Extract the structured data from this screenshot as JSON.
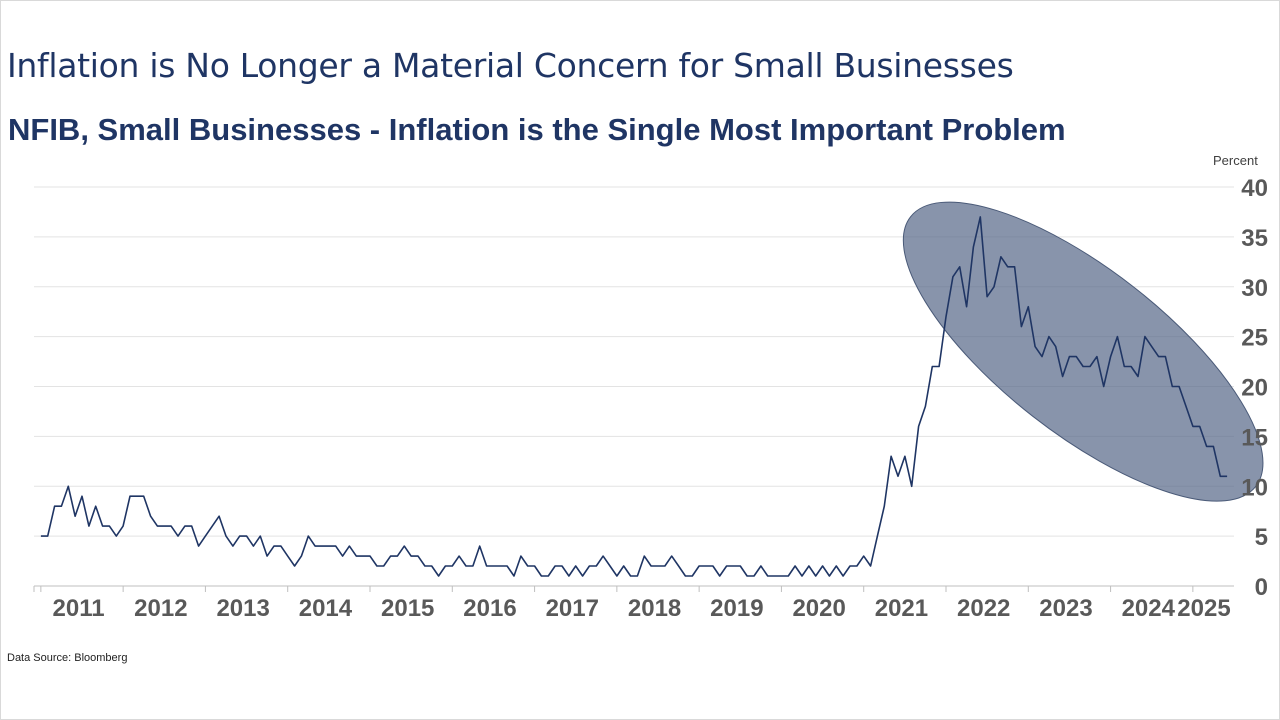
{
  "header": {
    "slide_title": "Inflation is No Longer a Material Concern for Small Businesses"
  },
  "footer": {
    "source": "Data Source: Bloomberg"
  },
  "colors": {
    "line": "#1f3564",
    "highlight_fill": "#5a6b8a",
    "grid": "#e3e3e3",
    "text": "#1f3564",
    "tick_text": "#595959"
  },
  "chart_data": {
    "type": "line",
    "title": "NFIB, Small Businesses - Inflation is the Single Most Important Problem",
    "unit_label": "Percent",
    "xlabel": "",
    "ylabel": "",
    "ylim": [
      0,
      40
    ],
    "yticks": [
      "0",
      "5",
      "10",
      "15",
      "20",
      "25",
      "30",
      "35",
      "40"
    ],
    "xlim": [
      "2010-12",
      "2025-07"
    ],
    "xticks": [
      "2011",
      "2012",
      "2013",
      "2014",
      "2015",
      "2016",
      "2017",
      "2018",
      "2019",
      "2020",
      "2021",
      "2022",
      "2023",
      "2024",
      "2025"
    ],
    "y_axis_position": "right",
    "grid": true,
    "annotation": {
      "shape": "ellipse",
      "highlights": "2022 peak through 2025 decline"
    },
    "series": [
      {
        "x": [
          "2011-01",
          "2011-02",
          "2011-03",
          "2011-04",
          "2011-05",
          "2011-06",
          "2011-07",
          "2011-08",
          "2011-09",
          "2011-10",
          "2011-11",
          "2011-12",
          "2012-01",
          "2012-02",
          "2012-03",
          "2012-04",
          "2012-05",
          "2012-06",
          "2012-07",
          "2012-08",
          "2012-09",
          "2012-10",
          "2012-11",
          "2012-12",
          "2013-01",
          "2013-02",
          "2013-03",
          "2013-04",
          "2013-05",
          "2013-06",
          "2013-07",
          "2013-08",
          "2013-09",
          "2013-10",
          "2013-11",
          "2013-12",
          "2014-01",
          "2014-02",
          "2014-03",
          "2014-04",
          "2014-05",
          "2014-06",
          "2014-07",
          "2014-08",
          "2014-09",
          "2014-10",
          "2014-11",
          "2014-12",
          "2015-01",
          "2015-02",
          "2015-03",
          "2015-04",
          "2015-05",
          "2015-06",
          "2015-07",
          "2015-08",
          "2015-09",
          "2015-10",
          "2015-11",
          "2015-12",
          "2016-01",
          "2016-02",
          "2016-03",
          "2016-04",
          "2016-05",
          "2016-06",
          "2016-07",
          "2016-08",
          "2016-09",
          "2016-10",
          "2016-11",
          "2016-12",
          "2017-01",
          "2017-02",
          "2017-03",
          "2017-04",
          "2017-05",
          "2017-06",
          "2017-07",
          "2017-08",
          "2017-09",
          "2017-10",
          "2017-11",
          "2017-12",
          "2018-01",
          "2018-02",
          "2018-03",
          "2018-04",
          "2018-05",
          "2018-06",
          "2018-07",
          "2018-08",
          "2018-09",
          "2018-10",
          "2018-11",
          "2018-12",
          "2019-01",
          "2019-02",
          "2019-03",
          "2019-04",
          "2019-05",
          "2019-06",
          "2019-07",
          "2019-08",
          "2019-09",
          "2019-10",
          "2019-11",
          "2019-12",
          "2020-01",
          "2020-02",
          "2020-03",
          "2020-04",
          "2020-05",
          "2020-06",
          "2020-07",
          "2020-08",
          "2020-09",
          "2020-10",
          "2020-11",
          "2020-12",
          "2021-01",
          "2021-02",
          "2021-03",
          "2021-04",
          "2021-05",
          "2021-06",
          "2021-07",
          "2021-08",
          "2021-09",
          "2021-10",
          "2021-11",
          "2021-12",
          "2022-01",
          "2022-02",
          "2022-03",
          "2022-04",
          "2022-05",
          "2022-06",
          "2022-07",
          "2022-08",
          "2022-09",
          "2022-10",
          "2022-11",
          "2022-12",
          "2023-01",
          "2023-02",
          "2023-03",
          "2023-04",
          "2023-05",
          "2023-06",
          "2023-07",
          "2023-08",
          "2023-09",
          "2023-10",
          "2023-11",
          "2023-12",
          "2024-01",
          "2024-02",
          "2024-03",
          "2024-04",
          "2024-05",
          "2024-06",
          "2024-07",
          "2024-08",
          "2024-09",
          "2024-10",
          "2024-11",
          "2024-12",
          "2025-01",
          "2025-02",
          "2025-03",
          "2025-04",
          "2025-05",
          "2025-06"
        ],
        "values": [
          5,
          5,
          8,
          8,
          10,
          7,
          9,
          6,
          8,
          6,
          6,
          5,
          6,
          9,
          9,
          9,
          7,
          6,
          6,
          6,
          5,
          6,
          6,
          4,
          5,
          6,
          7,
          5,
          4,
          5,
          5,
          4,
          5,
          3,
          4,
          4,
          3,
          2,
          3,
          5,
          4,
          4,
          4,
          4,
          3,
          4,
          3,
          3,
          3,
          2,
          2,
          3,
          3,
          4,
          3,
          3,
          2,
          2,
          1,
          2,
          2,
          3,
          2,
          2,
          4,
          2,
          2,
          2,
          2,
          1,
          3,
          2,
          2,
          1,
          1,
          2,
          2,
          1,
          2,
          1,
          2,
          2,
          3,
          2,
          1,
          2,
          1,
          1,
          3,
          2,
          2,
          2,
          3,
          2,
          1,
          1,
          2,
          2,
          2,
          1,
          2,
          2,
          2,
          1,
          1,
          2,
          1,
          1,
          1,
          1,
          2,
          1,
          2,
          1,
          2,
          1,
          2,
          1,
          2,
          2,
          3,
          2,
          5,
          8,
          13,
          11,
          13,
          10,
          16,
          18,
          22,
          22,
          27,
          31,
          32,
          28,
          34,
          37,
          29,
          30,
          33,
          32,
          32,
          26,
          28,
          24,
          23,
          25,
          24,
          21,
          23,
          23,
          22,
          22,
          23,
          20,
          23,
          25,
          22,
          22,
          21,
          25,
          24,
          23,
          23,
          20,
          20,
          18,
          16,
          16,
          14,
          14,
          11,
          11
        ]
      }
    ]
  }
}
